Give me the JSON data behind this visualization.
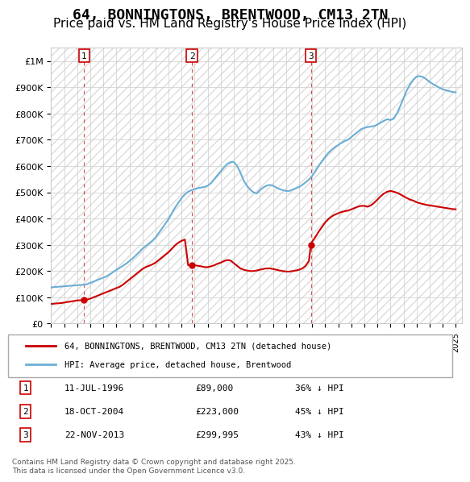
{
  "title": "64, BONNINGTONS, BRENTWOOD, CM13 2TN",
  "subtitle": "Price paid vs. HM Land Registry's House Price Index (HPI)",
  "title_fontsize": 13,
  "subtitle_fontsize": 11,
  "background_color": "#ffffff",
  "plot_bg_color": "#ffffff",
  "grid_color": "#cccccc",
  "ylim": [
    0,
    1050000
  ],
  "xlim_start": 1994.0,
  "xlim_end": 2025.5,
  "yticks": [
    0,
    100000,
    200000,
    300000,
    400000,
    500000,
    600000,
    700000,
    800000,
    900000,
    1000000
  ],
  "ytick_labels": [
    "£0",
    "£100K",
    "£200K",
    "£300K",
    "£400K",
    "£500K",
    "£600K",
    "£700K",
    "£800K",
    "£900K",
    "£1M"
  ],
  "xticks": [
    1994,
    1995,
    1996,
    1997,
    1998,
    1999,
    2000,
    2001,
    2002,
    2003,
    2004,
    2005,
    2006,
    2007,
    2008,
    2009,
    2010,
    2011,
    2012,
    2013,
    2014,
    2015,
    2016,
    2017,
    2018,
    2019,
    2020,
    2021,
    2022,
    2023,
    2024,
    2025
  ],
  "hpi_color": "#6baed6",
  "price_color": "#cc0000",
  "sale_marker_color": "#cc0000",
  "sale_vline_color": "#cc0000",
  "sales": [
    {
      "num": 1,
      "year": 1996.53,
      "price": 89000,
      "date": "11-JUL-1996",
      "pct": "36%"
    },
    {
      "num": 2,
      "year": 2004.79,
      "price": 223000,
      "date": "18-OCT-2004",
      "pct": "45%"
    },
    {
      "num": 3,
      "year": 2013.9,
      "price": 299995,
      "date": "22-NOV-2013",
      "pct": "43%"
    }
  ],
  "hpi_x": [
    1994,
    1994.25,
    1994.5,
    1994.75,
    1995,
    1995.25,
    1995.5,
    1995.75,
    1996,
    1996.25,
    1996.5,
    1996.75,
    1997,
    1997.25,
    1997.5,
    1997.75,
    1998,
    1998.25,
    1998.5,
    1998.75,
    1999,
    1999.25,
    1999.5,
    1999.75,
    2000,
    2000.25,
    2000.5,
    2000.75,
    2001,
    2001.25,
    2001.5,
    2001.75,
    2002,
    2002.25,
    2002.5,
    2002.75,
    2003,
    2003.25,
    2003.5,
    2003.75,
    2004,
    2004.25,
    2004.5,
    2004.75,
    2005,
    2005.25,
    2005.5,
    2005.75,
    2006,
    2006.25,
    2006.5,
    2006.75,
    2007,
    2007.25,
    2007.5,
    2007.75,
    2008,
    2008.25,
    2008.5,
    2008.75,
    2009,
    2009.25,
    2009.5,
    2009.75,
    2010,
    2010.25,
    2010.5,
    2010.75,
    2011,
    2011.25,
    2011.5,
    2011.75,
    2012,
    2012.25,
    2012.5,
    2012.75,
    2013,
    2013.25,
    2013.5,
    2013.75,
    2014,
    2014.25,
    2014.5,
    2014.75,
    2015,
    2015.25,
    2015.5,
    2015.75,
    2016,
    2016.25,
    2016.5,
    2016.75,
    2017,
    2017.25,
    2017.5,
    2017.75,
    2018,
    2018.25,
    2018.5,
    2018.75,
    2019,
    2019.25,
    2019.5,
    2019.75,
    2020,
    2020.25,
    2020.5,
    2020.75,
    2021,
    2021.25,
    2021.5,
    2021.75,
    2022,
    2022.25,
    2022.5,
    2022.75,
    2023,
    2023.25,
    2023.5,
    2023.75,
    2024,
    2024.25,
    2024.5,
    2024.75,
    2025
  ],
  "hpi_y": [
    138000,
    139000,
    140000,
    141000,
    142000,
    143000,
    144000,
    145000,
    146000,
    147000,
    148000,
    150000,
    155000,
    160000,
    165000,
    170000,
    175000,
    180000,
    188000,
    196000,
    204000,
    212000,
    220000,
    228000,
    238000,
    248000,
    260000,
    272000,
    285000,
    295000,
    305000,
    315000,
    328000,
    345000,
    362000,
    380000,
    398000,
    420000,
    442000,
    460000,
    478000,
    492000,
    502000,
    508000,
    512000,
    516000,
    518000,
    520000,
    525000,
    535000,
    550000,
    565000,
    580000,
    595000,
    608000,
    615000,
    615000,
    600000,
    575000,
    545000,
    525000,
    510000,
    500000,
    495000,
    508000,
    518000,
    525000,
    528000,
    525000,
    518000,
    512000,
    508000,
    505000,
    505000,
    510000,
    515000,
    520000,
    528000,
    538000,
    548000,
    562000,
    580000,
    600000,
    618000,
    635000,
    650000,
    662000,
    672000,
    680000,
    688000,
    695000,
    700000,
    710000,
    720000,
    730000,
    740000,
    745000,
    748000,
    750000,
    752000,
    758000,
    765000,
    772000,
    778000,
    775000,
    780000,
    800000,
    828000,
    858000,
    888000,
    910000,
    928000,
    940000,
    942000,
    938000,
    930000,
    920000,
    912000,
    905000,
    898000,
    892000,
    888000,
    885000,
    882000,
    880000
  ],
  "price_x": [
    1994,
    1994.25,
    1994.5,
    1994.75,
    1995,
    1995.25,
    1995.5,
    1995.75,
    1996,
    1996.25,
    1996.5,
    1996.53,
    1996.75,
    1997,
    1997.25,
    1997.5,
    1997.75,
    1998,
    1998.25,
    1998.5,
    1998.75,
    1999,
    1999.25,
    1999.5,
    1999.75,
    2000,
    2000.25,
    2000.5,
    2000.75,
    2001,
    2001.25,
    2001.5,
    2001.75,
    2002,
    2002.25,
    2002.5,
    2002.75,
    2003,
    2003.25,
    2003.5,
    2003.75,
    2004,
    2004.25,
    2004.5,
    2004.79,
    2005,
    2005.25,
    2005.5,
    2005.75,
    2006,
    2006.25,
    2006.5,
    2006.75,
    2007,
    2007.25,
    2007.5,
    2007.75,
    2008,
    2008.25,
    2008.5,
    2008.75,
    2009,
    2009.25,
    2009.5,
    2009.75,
    2010,
    2010.25,
    2010.5,
    2010.75,
    2011,
    2011.25,
    2011.5,
    2011.75,
    2012,
    2012.25,
    2012.5,
    2012.75,
    2013,
    2013.25,
    2013.5,
    2013.75,
    2013.9,
    2014,
    2014.25,
    2014.5,
    2014.75,
    2015,
    2015.25,
    2015.5,
    2015.75,
    2016,
    2016.25,
    2016.5,
    2016.75,
    2017,
    2017.25,
    2017.5,
    2017.75,
    2018,
    2018.25,
    2018.5,
    2018.75,
    2019,
    2019.25,
    2019.5,
    2019.75,
    2020,
    2020.25,
    2020.5,
    2020.75,
    2021,
    2021.25,
    2021.5,
    2021.75,
    2022,
    2022.25,
    2022.5,
    2022.75,
    2023,
    2023.25,
    2023.5,
    2023.75,
    2024,
    2024.25,
    2024.5,
    2024.75,
    2025
  ],
  "price_y": [
    75000,
    76000,
    77000,
    78000,
    80000,
    82000,
    84000,
    86000,
    88000,
    89000,
    89000,
    89000,
    91000,
    95000,
    100000,
    105000,
    110000,
    115000,
    120000,
    125000,
    130000,
    135000,
    140000,
    148000,
    158000,
    168000,
    178000,
    188000,
    198000,
    208000,
    215000,
    220000,
    225000,
    232000,
    242000,
    252000,
    262000,
    272000,
    285000,
    298000,
    308000,
    315000,
    320000,
    222000,
    223000,
    222000,
    220000,
    218000,
    215000,
    215000,
    218000,
    222000,
    228000,
    232000,
    238000,
    242000,
    240000,
    230000,
    220000,
    210000,
    205000,
    202000,
    200000,
    200000,
    202000,
    205000,
    208000,
    210000,
    210000,
    208000,
    205000,
    202000,
    200000,
    198000,
    198000,
    200000,
    202000,
    205000,
    210000,
    220000,
    238000,
    299995,
    312000,
    330000,
    350000,
    368000,
    385000,
    398000,
    408000,
    415000,
    420000,
    425000,
    428000,
    430000,
    435000,
    440000,
    445000,
    448000,
    448000,
    445000,
    450000,
    460000,
    472000,
    485000,
    495000,
    502000,
    505000,
    502000,
    498000,
    492000,
    485000,
    478000,
    472000,
    468000,
    462000,
    458000,
    455000,
    452000,
    450000,
    448000,
    446000,
    444000,
    442000,
    440000,
    438000,
    436000,
    435000
  ],
  "legend_entries": [
    {
      "label": "64, BONNINGTONS, BRENTWOOD, CM13 2TN (detached house)",
      "color": "#cc0000"
    },
    {
      "label": "HPI: Average price, detached house, Brentwood",
      "color": "#6baed6"
    }
  ],
  "footer_text": "Contains HM Land Registry data © Crown copyright and database right 2025.\nThis data is licensed under the Open Government Licence v3.0.",
  "hatch_pattern": "///",
  "hatch_color": "#cccccc"
}
